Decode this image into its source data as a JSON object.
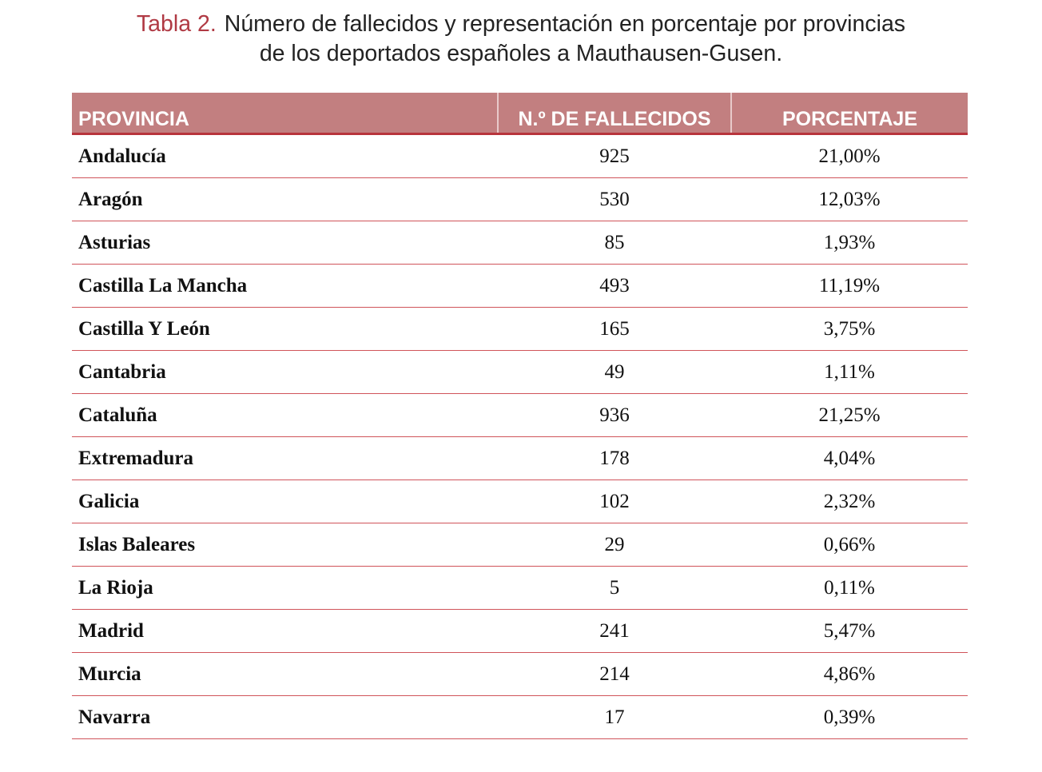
{
  "title": {
    "label": "Tabla 2.",
    "line1": "Número de fallecidos y representación en porcentaje por provincias",
    "line2": "de los deportados españoles a Mauthausen-Gusen."
  },
  "table": {
    "headers": [
      "PROVINCIA",
      "N.º DE FALLECIDOS",
      "PORCENTAJE"
    ],
    "rows": [
      [
        "Andalucía",
        "925",
        "21,00%"
      ],
      [
        "Aragón",
        "530",
        "12,03%"
      ],
      [
        "Asturias",
        "85",
        "1,93%"
      ],
      [
        "Castilla La Mancha",
        "493",
        "11,19%"
      ],
      [
        "Castilla Y León",
        "165",
        "3,75%"
      ],
      [
        "Cantabria",
        "49",
        "1,11%"
      ],
      [
        "Cataluña",
        "936",
        "21,25%"
      ],
      [
        "Extremadura",
        "178",
        "4,04%"
      ],
      [
        "Galicia",
        "102",
        "2,32%"
      ],
      [
        "Islas Baleares",
        "29",
        "0,66%"
      ],
      [
        "La Rioja",
        "5",
        "0,11%"
      ],
      [
        "Madrid",
        "241",
        "5,47%"
      ],
      [
        "Murcia",
        "214",
        "4,86%"
      ],
      [
        "Navarra",
        "17",
        "0,39%"
      ]
    ]
  }
}
